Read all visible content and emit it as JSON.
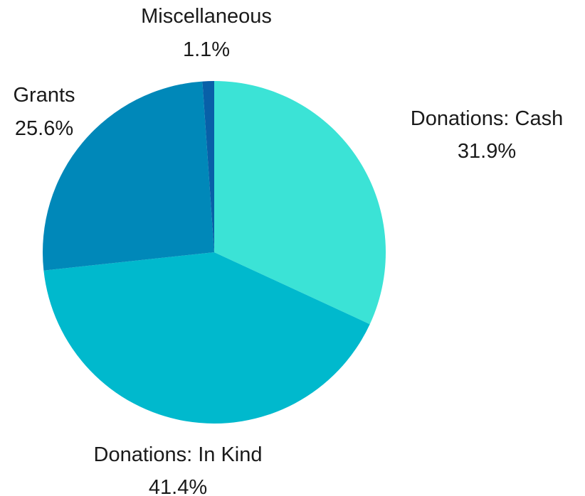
{
  "chart_data": {
    "type": "pie",
    "title": "",
    "slices": [
      {
        "label": "Donations: Cash",
        "value": 31.9,
        "percent_text": "31.9%",
        "color": "#3be3d6"
      },
      {
        "label": "Donations: In Kind",
        "value": 41.4,
        "percent_text": "41.4%",
        "color": "#00b9cd"
      },
      {
        "label": "Grants",
        "value": 25.6,
        "percent_text": "25.6%",
        "color": "#0088b9"
      },
      {
        "label": "Miscellaneous",
        "value": 1.1,
        "percent_text": "1.1%",
        "color": "#0860a8"
      }
    ],
    "start_angle": "12 o'clock",
    "direction": "clockwise",
    "legend": "none",
    "labels_outside": true
  }
}
